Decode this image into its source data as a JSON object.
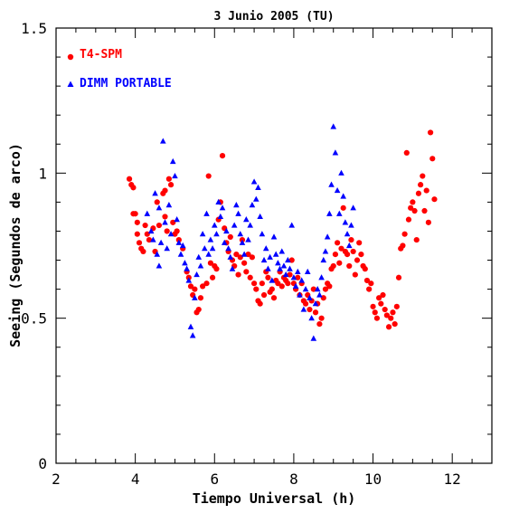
{
  "chart_data": {
    "type": "scatter",
    "title": "3 Junio 2005 (TU)",
    "xlabel": "Tiempo Universal (h)",
    "ylabel": "Seeing (Segundos de arco)",
    "xlim": [
      2,
      13
    ],
    "ylim": [
      0,
      1.5
    ],
    "xticks": [
      2,
      4,
      6,
      8,
      10,
      12
    ],
    "xtick_labels": [
      "2",
      "4",
      "6",
      "8",
      "10",
      "12"
    ],
    "yticks": [
      0,
      0.5,
      1,
      1.5
    ],
    "ytick_labels": [
      "0",
      "0.5",
      "1",
      "1.5"
    ],
    "grid": false,
    "legend_position": "top-left",
    "series": [
      {
        "name": "T4-SPM",
        "marker": "circle",
        "color": "#ff0000",
        "points": [
          [
            3.85,
            0.98
          ],
          [
            3.9,
            0.96
          ],
          [
            3.95,
            0.95
          ],
          [
            3.95,
            0.86
          ],
          [
            4.0,
            0.86
          ],
          [
            4.05,
            0.83
          ],
          [
            4.05,
            0.79
          ],
          [
            4.1,
            0.76
          ],
          [
            4.15,
            0.74
          ],
          [
            4.2,
            0.73
          ],
          [
            4.25,
            0.82
          ],
          [
            4.3,
            0.79
          ],
          [
            4.35,
            0.77
          ],
          [
            4.45,
            0.81
          ],
          [
            4.5,
            0.73
          ],
          [
            4.55,
            0.9
          ],
          [
            4.6,
            0.82
          ],
          [
            4.7,
            0.93
          ],
          [
            4.75,
            0.94
          ],
          [
            4.75,
            0.85
          ],
          [
            4.8,
            0.8
          ],
          [
            4.85,
            0.98
          ],
          [
            4.9,
            0.96
          ],
          [
            4.95,
            0.83
          ],
          [
            5.0,
            0.79
          ],
          [
            5.05,
            0.8
          ],
          [
            5.1,
            0.77
          ],
          [
            5.2,
            0.74
          ],
          [
            5.3,
            0.66
          ],
          [
            5.35,
            0.64
          ],
          [
            5.4,
            0.61
          ],
          [
            5.45,
            0.58
          ],
          [
            5.5,
            0.6
          ],
          [
            5.55,
            0.52
          ],
          [
            5.6,
            0.53
          ],
          [
            5.65,
            0.57
          ],
          [
            5.7,
            0.61
          ],
          [
            5.8,
            0.62
          ],
          [
            5.85,
            0.99
          ],
          [
            5.9,
            0.69
          ],
          [
            5.95,
            0.64
          ],
          [
            6.0,
            0.68
          ],
          [
            6.05,
            0.67
          ],
          [
            6.1,
            0.84
          ],
          [
            6.15,
            0.9
          ],
          [
            6.2,
            1.06
          ],
          [
            6.25,
            0.81
          ],
          [
            6.3,
            0.76
          ],
          [
            6.35,
            0.73
          ],
          [
            6.4,
            0.78
          ],
          [
            6.45,
            0.7
          ],
          [
            6.5,
            0.68
          ],
          [
            6.55,
            0.72
          ],
          [
            6.6,
            0.65
          ],
          [
            6.65,
            0.71
          ],
          [
            6.7,
            0.77
          ],
          [
            6.75,
            0.69
          ],
          [
            6.8,
            0.66
          ],
          [
            6.85,
            0.72
          ],
          [
            6.9,
            0.64
          ],
          [
            6.95,
            0.71
          ],
          [
            7.0,
            0.62
          ],
          [
            7.05,
            0.6
          ],
          [
            7.1,
            0.56
          ],
          [
            7.15,
            0.55
          ],
          [
            7.2,
            0.62
          ],
          [
            7.25,
            0.58
          ],
          [
            7.3,
            0.66
          ],
          [
            7.35,
            0.64
          ],
          [
            7.4,
            0.59
          ],
          [
            7.45,
            0.6
          ],
          [
            7.5,
            0.57
          ],
          [
            7.55,
            0.63
          ],
          [
            7.6,
            0.62
          ],
          [
            7.65,
            0.66
          ],
          [
            7.7,
            0.61
          ],
          [
            7.75,
            0.64
          ],
          [
            7.8,
            0.63
          ],
          [
            7.85,
            0.62
          ],
          [
            7.9,
            0.65
          ],
          [
            7.95,
            0.7
          ],
          [
            8.0,
            0.62
          ],
          [
            8.05,
            0.6
          ],
          [
            8.1,
            0.64
          ],
          [
            8.15,
            0.58
          ],
          [
            8.2,
            0.62
          ],
          [
            8.25,
            0.56
          ],
          [
            8.3,
            0.55
          ],
          [
            8.35,
            0.58
          ],
          [
            8.4,
            0.53
          ],
          [
            8.45,
            0.56
          ],
          [
            8.5,
            0.6
          ],
          [
            8.55,
            0.52
          ],
          [
            8.6,
            0.55
          ],
          [
            8.65,
            0.48
          ],
          [
            8.7,
            0.5
          ],
          [
            8.75,
            0.57
          ],
          [
            8.8,
            0.6
          ],
          [
            8.85,
            0.62
          ],
          [
            8.9,
            0.61
          ],
          [
            8.95,
            0.67
          ],
          [
            9.0,
            0.68
          ],
          [
            9.05,
            0.72
          ],
          [
            9.1,
            0.76
          ],
          [
            9.15,
            0.69
          ],
          [
            9.2,
            0.74
          ],
          [
            9.25,
            0.88
          ],
          [
            9.3,
            0.73
          ],
          [
            9.35,
            0.72
          ],
          [
            9.4,
            0.68
          ],
          [
            9.45,
            0.77
          ],
          [
            9.5,
            0.73
          ],
          [
            9.55,
            0.65
          ],
          [
            9.6,
            0.7
          ],
          [
            9.65,
            0.76
          ],
          [
            9.7,
            0.72
          ],
          [
            9.75,
            0.68
          ],
          [
            9.8,
            0.67
          ],
          [
            9.85,
            0.63
          ],
          [
            9.9,
            0.6
          ],
          [
            9.95,
            0.62
          ],
          [
            10.0,
            0.54
          ],
          [
            10.05,
            0.52
          ],
          [
            10.1,
            0.5
          ],
          [
            10.15,
            0.57
          ],
          [
            10.2,
            0.55
          ],
          [
            10.25,
            0.58
          ],
          [
            10.3,
            0.53
          ],
          [
            10.35,
            0.51
          ],
          [
            10.4,
            0.47
          ],
          [
            10.45,
            0.5
          ],
          [
            10.5,
            0.52
          ],
          [
            10.55,
            0.48
          ],
          [
            10.6,
            0.54
          ],
          [
            10.65,
            0.64
          ],
          [
            10.7,
            0.74
          ],
          [
            10.75,
            0.75
          ],
          [
            10.8,
            0.79
          ],
          [
            10.85,
            1.07
          ],
          [
            10.9,
            0.84
          ],
          [
            10.95,
            0.88
          ],
          [
            11.0,
            0.9
          ],
          [
            11.05,
            0.87
          ],
          [
            11.1,
            0.77
          ],
          [
            11.15,
            0.93
          ],
          [
            11.2,
            0.96
          ],
          [
            11.25,
            0.99
          ],
          [
            11.3,
            0.87
          ],
          [
            11.35,
            0.94
          ],
          [
            11.4,
            0.83
          ],
          [
            11.45,
            1.14
          ],
          [
            11.5,
            1.05
          ],
          [
            11.55,
            0.91
          ]
        ]
      },
      {
        "name": "DIMM PORTABLE",
        "marker": "triangle",
        "color": "#0000ff",
        "points": [
          [
            4.3,
            0.86
          ],
          [
            4.4,
            0.8
          ],
          [
            4.45,
            0.77
          ],
          [
            4.5,
            0.93
          ],
          [
            4.55,
            0.72
          ],
          [
            4.6,
            0.68
          ],
          [
            4.6,
            0.88
          ],
          [
            4.65,
            0.76
          ],
          [
            4.7,
            1.11
          ],
          [
            4.75,
            0.83
          ],
          [
            4.8,
            0.74
          ],
          [
            4.85,
            0.89
          ],
          [
            4.9,
            0.79
          ],
          [
            4.95,
            1.04
          ],
          [
            5.0,
            0.99
          ],
          [
            5.05,
            0.84
          ],
          [
            5.1,
            0.76
          ],
          [
            5.15,
            0.72
          ],
          [
            5.2,
            0.75
          ],
          [
            5.25,
            0.69
          ],
          [
            5.3,
            0.67
          ],
          [
            5.35,
            0.63
          ],
          [
            5.4,
            0.47
          ],
          [
            5.45,
            0.44
          ],
          [
            5.5,
            0.57
          ],
          [
            5.55,
            0.65
          ],
          [
            5.6,
            0.71
          ],
          [
            5.65,
            0.68
          ],
          [
            5.7,
            0.79
          ],
          [
            5.75,
            0.74
          ],
          [
            5.8,
            0.86
          ],
          [
            5.85,
            0.72
          ],
          [
            5.9,
            0.77
          ],
          [
            5.95,
            0.74
          ],
          [
            6.0,
            0.82
          ],
          [
            6.05,
            0.79
          ],
          [
            6.1,
            0.9
          ],
          [
            6.15,
            0.85
          ],
          [
            6.2,
            0.88
          ],
          [
            6.25,
            0.76
          ],
          [
            6.3,
            0.8
          ],
          [
            6.35,
            0.74
          ],
          [
            6.4,
            0.71
          ],
          [
            6.45,
            0.67
          ],
          [
            6.5,
            0.82
          ],
          [
            6.55,
            0.89
          ],
          [
            6.6,
            0.86
          ],
          [
            6.65,
            0.79
          ],
          [
            6.7,
            0.76
          ],
          [
            6.75,
            0.72
          ],
          [
            6.8,
            0.84
          ],
          [
            6.85,
            0.77
          ],
          [
            6.9,
            0.82
          ],
          [
            6.95,
            0.89
          ],
          [
            7.0,
            0.97
          ],
          [
            7.05,
            0.91
          ],
          [
            7.1,
            0.95
          ],
          [
            7.15,
            0.85
          ],
          [
            7.2,
            0.79
          ],
          [
            7.25,
            0.7
          ],
          [
            7.3,
            0.74
          ],
          [
            7.35,
            0.67
          ],
          [
            7.4,
            0.71
          ],
          [
            7.45,
            0.63
          ],
          [
            7.5,
            0.78
          ],
          [
            7.55,
            0.72
          ],
          [
            7.6,
            0.69
          ],
          [
            7.65,
            0.67
          ],
          [
            7.7,
            0.73
          ],
          [
            7.75,
            0.68
          ],
          [
            7.8,
            0.65
          ],
          [
            7.85,
            0.7
          ],
          [
            7.9,
            0.67
          ],
          [
            7.95,
            0.82
          ],
          [
            8.0,
            0.64
          ],
          [
            8.05,
            0.61
          ],
          [
            8.1,
            0.66
          ],
          [
            8.15,
            0.58
          ],
          [
            8.2,
            0.63
          ],
          [
            8.25,
            0.53
          ],
          [
            8.3,
            0.6
          ],
          [
            8.35,
            0.66
          ],
          [
            8.4,
            0.57
          ],
          [
            8.45,
            0.5
          ],
          [
            8.5,
            0.43
          ],
          [
            8.55,
            0.55
          ],
          [
            8.6,
            0.6
          ],
          [
            8.65,
            0.58
          ],
          [
            8.7,
            0.64
          ],
          [
            8.75,
            0.7
          ],
          [
            8.8,
            0.73
          ],
          [
            8.85,
            0.78
          ],
          [
            8.9,
            0.86
          ],
          [
            8.95,
            0.96
          ],
          [
            9.0,
            1.16
          ],
          [
            9.05,
            1.07
          ],
          [
            9.1,
            0.94
          ],
          [
            9.15,
            0.86
          ],
          [
            9.2,
            1.0
          ],
          [
            9.25,
            0.92
          ],
          [
            9.3,
            0.83
          ],
          [
            9.35,
            0.79
          ],
          [
            9.4,
            0.75
          ],
          [
            9.45,
            0.82
          ],
          [
            9.5,
            0.88
          ]
        ]
      }
    ]
  }
}
